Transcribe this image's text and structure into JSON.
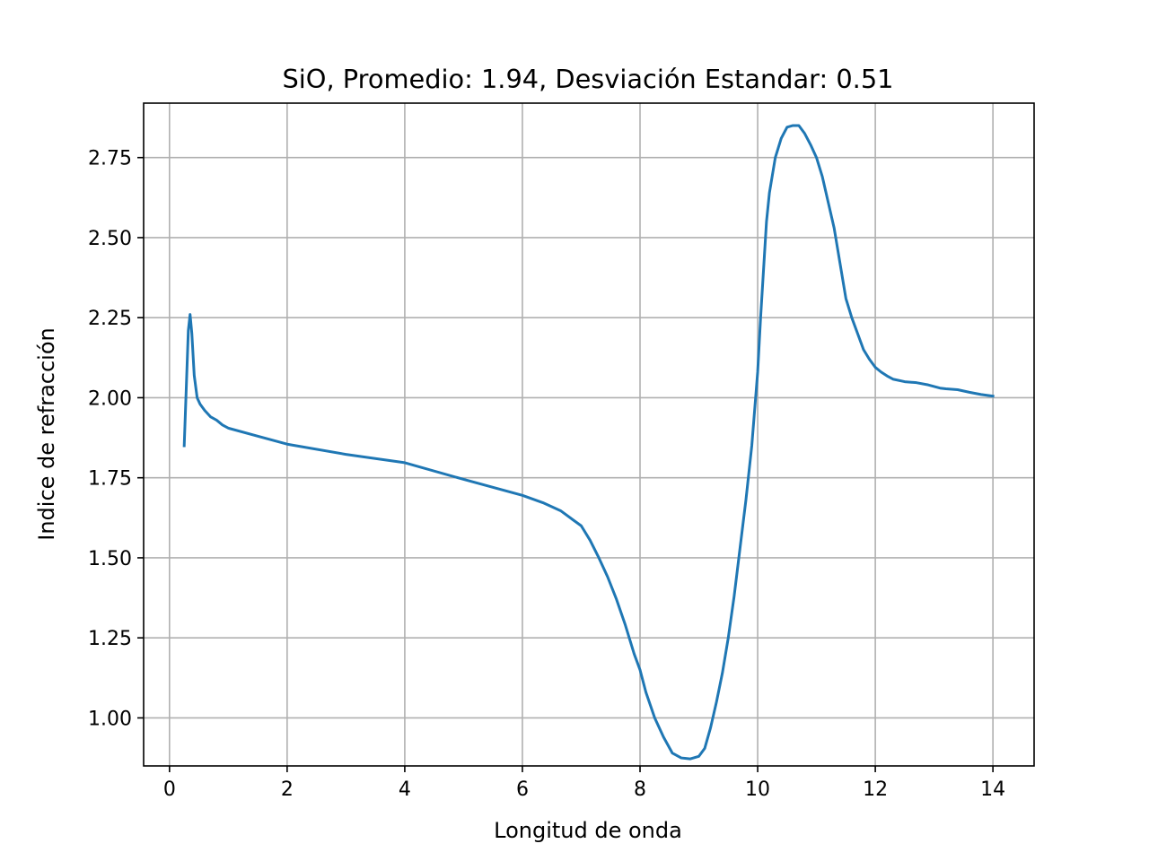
{
  "chart_data": {
    "type": "line",
    "title": "SiO, Promedio: 1.94, Desviación Estandar: 0.51",
    "xlabel": "Longitud de onda",
    "ylabel": "Indice de refracción",
    "xlim": [
      -0.44,
      14.7
    ],
    "ylim": [
      0.85,
      2.92
    ],
    "x_ticks": [
      0,
      2,
      4,
      6,
      8,
      10,
      12,
      14
    ],
    "x_tick_labels": [
      "0",
      "2",
      "4",
      "6",
      "8",
      "10",
      "12",
      "14"
    ],
    "y_ticks": [
      1.0,
      1.25,
      1.5,
      1.75,
      2.0,
      2.25,
      2.5,
      2.75
    ],
    "y_tick_labels": [
      "1.00",
      "1.25",
      "1.50",
      "1.75",
      "2.00",
      "2.25",
      "2.50",
      "2.75"
    ],
    "grid": true,
    "series": [
      {
        "color": "#1f77b4",
        "x": [
          0.25,
          0.32,
          0.35,
          0.38,
          0.42,
          0.47,
          0.52,
          0.6,
          0.7,
          0.8,
          0.9,
          1.0,
          1.5,
          2.0,
          3.0,
          4.0,
          5.0,
          6.0,
          6.35,
          6.65,
          6.85,
          7.0,
          7.15,
          7.3,
          7.45,
          7.6,
          7.75,
          7.9,
          8.0,
          8.1,
          8.25,
          8.4,
          8.55,
          8.7,
          8.85,
          9.0,
          9.1,
          9.2,
          9.3,
          9.4,
          9.5,
          9.6,
          9.7,
          9.8,
          9.9,
          10.0,
          10.05,
          10.1,
          10.15,
          10.2,
          10.3,
          10.4,
          10.5,
          10.6,
          10.7,
          10.8,
          10.9,
          11.0,
          11.1,
          11.2,
          11.3,
          11.4,
          11.5,
          11.6,
          11.7,
          11.8,
          11.9,
          12.0,
          12.1,
          12.2,
          12.3,
          12.5,
          12.7,
          12.9,
          13.1,
          13.2,
          13.4,
          13.6,
          13.8,
          14.0
        ],
        "y": [
          1.85,
          2.21,
          2.26,
          2.2,
          2.07,
          2.0,
          1.98,
          1.96,
          1.94,
          1.93,
          1.915,
          1.905,
          1.88,
          1.855,
          1.823,
          1.797,
          1.745,
          1.695,
          1.672,
          1.647,
          1.62,
          1.6,
          1.555,
          1.5,
          1.44,
          1.37,
          1.29,
          1.2,
          1.15,
          1.08,
          1.0,
          0.94,
          0.89,
          0.875,
          0.872,
          0.88,
          0.905,
          0.97,
          1.05,
          1.14,
          1.25,
          1.38,
          1.53,
          1.68,
          1.85,
          2.08,
          2.25,
          2.4,
          2.55,
          2.64,
          2.75,
          2.81,
          2.845,
          2.85,
          2.85,
          2.825,
          2.79,
          2.75,
          2.69,
          2.61,
          2.53,
          2.42,
          2.31,
          2.25,
          2.2,
          2.15,
          2.12,
          2.095,
          2.08,
          2.068,
          2.058,
          2.05,
          2.047,
          2.04,
          2.03,
          2.028,
          2.025,
          2.017,
          2.01,
          2.005
        ]
      }
    ]
  }
}
